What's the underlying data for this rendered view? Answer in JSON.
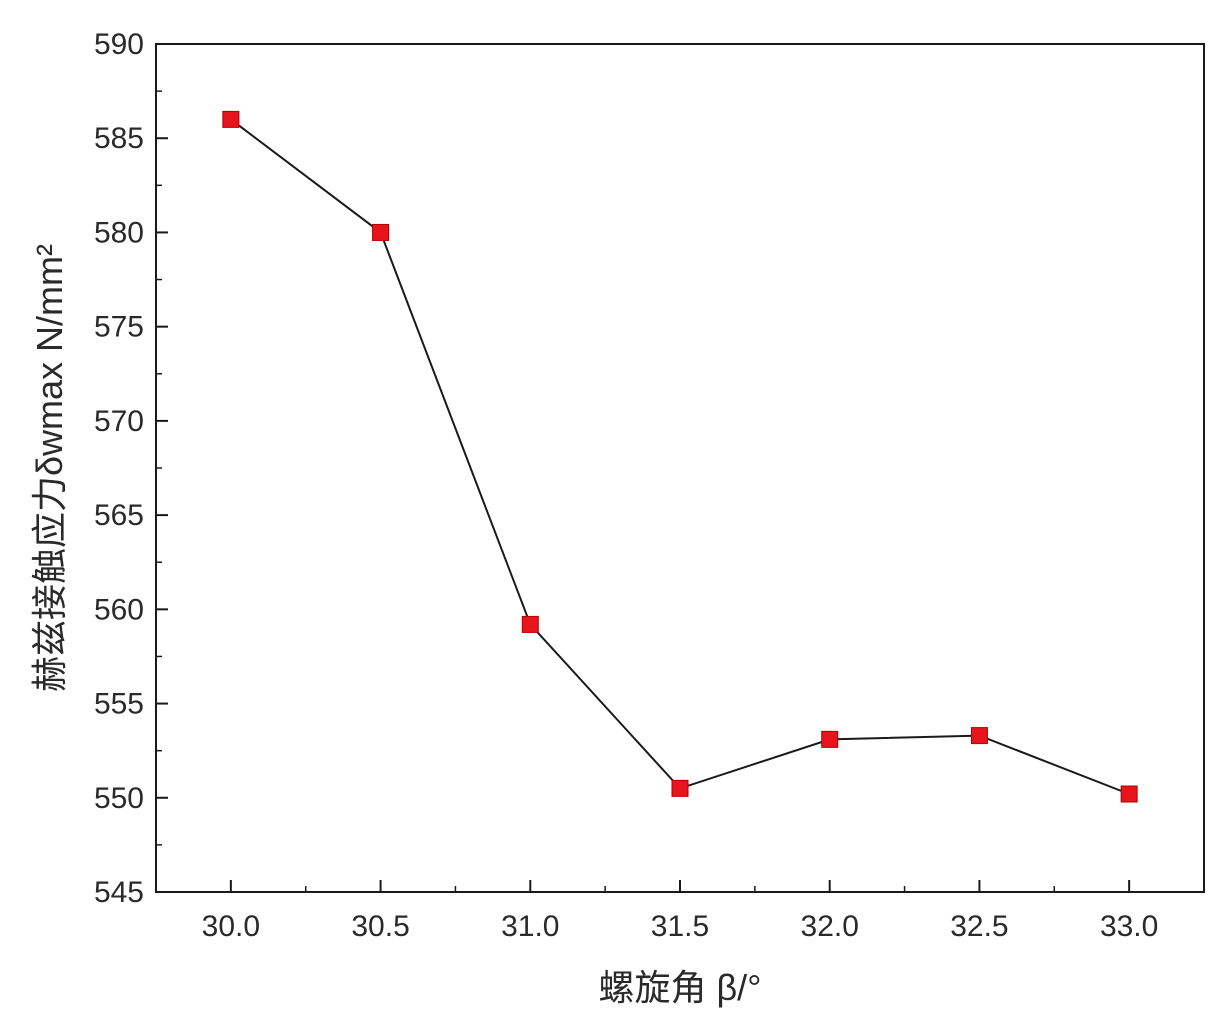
{
  "chart_data": {
    "type": "line",
    "title": "",
    "xlabel": "螺旋角 β/°",
    "ylabel": "赫兹接触应力δwmax N/mm²",
    "x": [
      30.0,
      30.5,
      31.0,
      31.5,
      32.0,
      32.5,
      33.0
    ],
    "series": [
      {
        "values": [
          586.0,
          580.0,
          559.2,
          550.5,
          553.1,
          553.3,
          550.2
        ]
      }
    ],
    "xlim": [
      29.75,
      33.25
    ],
    "ylim": [
      545,
      590
    ],
    "x_ticks": [
      "30.0",
      "30.5",
      "31.0",
      "31.5",
      "32.0",
      "32.5",
      "33.0"
    ],
    "y_ticks": [
      "545",
      "550",
      "555",
      "560",
      "565",
      "570",
      "575",
      "580",
      "585",
      "590"
    ],
    "grid": false,
    "legend": "none",
    "marker": "square",
    "colors": {
      "marker_fill": "#e8141b",
      "line": "#1a1a1a",
      "axis": "#1a1a1a",
      "text": "#2a2a2a"
    }
  }
}
